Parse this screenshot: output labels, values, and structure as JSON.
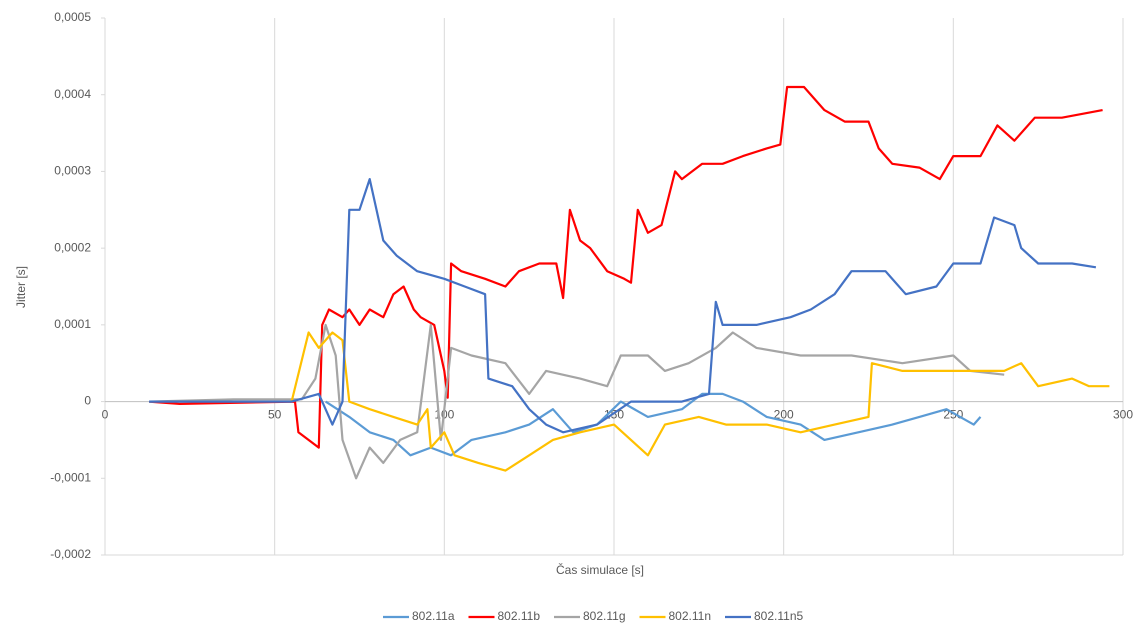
{
  "chart_data": {
    "type": "line",
    "x_label": "Čas simulace [s]",
    "y_label": "Jitter [s]",
    "xlim": [
      0,
      300
    ],
    "xticks": [
      0,
      50,
      100,
      150,
      200,
      250,
      300
    ],
    "ylim": [
      -0.0002,
      0.0005
    ],
    "yticks": [
      {
        "value": -0.0002,
        "label": "-0,0002"
      },
      {
        "value": -0.0001,
        "label": "-0,0001"
      },
      0,
      {
        "value": 0.0001,
        "label": "0,0001"
      },
      {
        "value": 0.0002,
        "label": "0,0002"
      },
      {
        "value": 0.0003,
        "label": "0,0003"
      },
      {
        "value": 0.0004,
        "label": "0,0004"
      },
      {
        "value": 0.0005,
        "label": "0,0005"
      }
    ],
    "grid": true,
    "legend": "bottom",
    "series": [
      {
        "name": "802.11a",
        "color": "#5b9bd5",
        "x": [
          65,
          72,
          78,
          85,
          90,
          96,
          102,
          108,
          118,
          125,
          132,
          138,
          145,
          152,
          160,
          170,
          176,
          182,
          188,
          195,
          205,
          212,
          222,
          232,
          240,
          248,
          252,
          256,
          258
        ],
        "values": [
          0,
          -2e-05,
          -4e-05,
          -5e-05,
          -7e-05,
          -6e-05,
          -7e-05,
          -5e-05,
          -4e-05,
          -3e-05,
          -1e-05,
          -4e-05,
          -3e-05,
          0,
          -2e-05,
          -1e-05,
          1e-05,
          1e-05,
          0,
          -2e-05,
          -3e-05,
          -5e-05,
          -4e-05,
          -3e-05,
          -2e-05,
          -1e-05,
          -2e-05,
          -3e-05,
          -2e-05
        ]
      },
      {
        "name": "802.11b",
        "color": "#ff0000",
        "x": [
          13,
          22,
          56,
          57,
          63,
          64,
          66,
          70,
          72,
          75,
          78,
          82,
          85,
          88,
          91,
          93,
          97,
          100,
          101,
          102,
          105,
          112,
          118,
          122,
          128,
          133,
          135,
          137,
          140,
          143,
          148,
          153,
          155,
          157,
          160,
          164,
          168,
          170,
          176,
          182,
          188,
          195,
          199,
          201,
          206,
          212,
          218,
          225,
          228,
          232,
          240,
          246,
          250,
          258,
          263,
          268,
          274,
          282,
          294
        ],
        "values": [
          0,
          -3e-06,
          0,
          -4e-05,
          -6e-05,
          0.0001,
          0.00012,
          0.00011,
          0.00012,
          0.0001,
          0.00012,
          0.00011,
          0.00014,
          0.00015,
          0.00012,
          0.00011,
          0.0001,
          4e-05,
          5e-06,
          0.00018,
          0.00017,
          0.00016,
          0.00015,
          0.00017,
          0.00018,
          0.00018,
          0.000135,
          0.00025,
          0.00021,
          0.0002,
          0.00017,
          0.00016,
          0.000155,
          0.00025,
          0.00022,
          0.00023,
          0.0003,
          0.00029,
          0.00031,
          0.00031,
          0.00032,
          0.00033,
          0.000335,
          0.00041,
          0.00041,
          0.00038,
          0.000365,
          0.000365,
          0.00033,
          0.00031,
          0.000305,
          0.00029,
          0.00032,
          0.00032,
          0.00036,
          0.00034,
          0.00037,
          0.00037,
          0.00038
        ]
      },
      {
        "name": "802.11g",
        "color": "#a5a5a5",
        "x": [
          13,
          38,
          58,
          62,
          65,
          68,
          70,
          74,
          78,
          82,
          87,
          92,
          96,
          99,
          102,
          108,
          118,
          125,
          130,
          140,
          148,
          152,
          160,
          165,
          172,
          180,
          185,
          192,
          205,
          220,
          235,
          250,
          255,
          265
        ],
        "values": [
          0,
          3e-06,
          3e-06,
          3e-05,
          0.0001,
          6e-05,
          -5e-05,
          -0.0001,
          -6e-05,
          -8e-05,
          -5e-05,
          -4e-05,
          0.0001,
          -5e-05,
          7e-05,
          6e-05,
          5e-05,
          1e-05,
          4e-05,
          3e-05,
          2e-05,
          6e-05,
          6e-05,
          4e-05,
          5e-05,
          7e-05,
          9e-05,
          7e-05,
          6e-05,
          6e-05,
          5e-05,
          6e-05,
          4e-05,
          3.5e-05
        ]
      },
      {
        "name": "802.11n",
        "color": "#ffc000",
        "x": [
          55,
          60,
          63,
          67,
          70,
          72,
          78,
          85,
          92,
          95,
          96,
          100,
          103,
          110,
          118,
          125,
          132,
          140,
          150,
          160,
          165,
          175,
          183,
          195,
          205,
          215,
          225,
          226,
          235,
          245,
          255,
          265,
          270,
          275,
          285,
          290,
          296
        ],
        "values": [
          0,
          9e-05,
          7e-05,
          9e-05,
          8e-05,
          0,
          -1e-05,
          -2e-05,
          -3e-05,
          -1e-05,
          -6e-05,
          -4e-05,
          -7e-05,
          -8e-05,
          -9e-05,
          -7e-05,
          -5e-05,
          -4e-05,
          -3e-05,
          -7e-05,
          -3e-05,
          -2e-05,
          -3e-05,
          -3e-05,
          -4e-05,
          -3e-05,
          -2e-05,
          5e-05,
          4e-05,
          4e-05,
          4e-05,
          4e-05,
          5e-05,
          2e-05,
          3e-05,
          2e-05,
          2e-05
        ]
      },
      {
        "name": "802.11n5",
        "color": "#4472c4",
        "x": [
          13,
          55,
          63,
          67,
          70,
          72,
          75,
          78,
          80,
          82,
          86,
          92,
          100,
          106,
          112,
          113,
          120,
          125,
          130,
          135,
          145,
          155,
          170,
          178,
          180,
          182,
          192,
          202,
          208,
          215,
          220,
          230,
          236,
          245,
          250,
          258,
          262,
          268,
          270,
          275,
          285,
          292
        ],
        "values": [
          0,
          0,
          1e-05,
          -3e-05,
          0,
          0.00025,
          0.00025,
          0.00029,
          0.00025,
          0.00021,
          0.00019,
          0.00017,
          0.00016,
          0.00015,
          0.00014,
          3e-05,
          2e-05,
          -1e-05,
          -3e-05,
          -4e-05,
          -3e-05,
          0,
          0,
          1e-05,
          0.00013,
          0.0001,
          0.0001,
          0.00011,
          0.00012,
          0.00014,
          0.00017,
          0.00017,
          0.00014,
          0.00015,
          0.00018,
          0.00018,
          0.00024,
          0.00023,
          0.0002,
          0.00018,
          0.00018,
          0.000175
        ]
      }
    ]
  }
}
